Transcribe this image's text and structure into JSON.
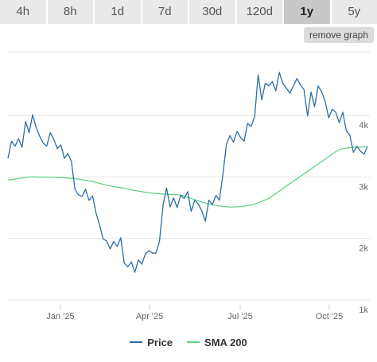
{
  "tabs": [
    "4h",
    "8h",
    "1d",
    "7d",
    "30d",
    "120d",
    "1y",
    "5y"
  ],
  "active_tab": "1y",
  "remove_graph_label": "remove graph",
  "colors": {
    "price": "#2c6da3",
    "sma": "#57d17f",
    "grid": "#e6e6e6",
    "axis_text": "#666666"
  },
  "chart_data": {
    "type": "line",
    "x_ticks": [
      "Jan '25",
      "Apr '25",
      "Jul '25",
      "Oct '25"
    ],
    "y_ticks": [
      "1k",
      "2k",
      "3k",
      "4k"
    ],
    "y_tick_values": [
      1000,
      2000,
      3000,
      4000
    ],
    "ylim": [
      1000,
      4000
    ],
    "series": [
      {
        "name": "Price",
        "color": "#2c6da3",
        "values": [
          3300,
          3580,
          3500,
          3620,
          3480,
          3900,
          3720,
          4010,
          3800,
          3660,
          3550,
          3500,
          3720,
          3610,
          3460,
          3520,
          3300,
          3380,
          3250,
          2800,
          2710,
          2680,
          2800,
          2620,
          2690,
          2410,
          2220,
          1990,
          1960,
          1830,
          1950,
          1870,
          2010,
          1600,
          1540,
          1620,
          1450,
          1650,
          1580,
          1750,
          1800,
          1760,
          1760,
          1950,
          2540,
          2820,
          2510,
          2660,
          2500,
          2700,
          2650,
          2760,
          2440,
          2620,
          2560,
          2450,
          2280,
          2620,
          2550,
          2700,
          2620,
          3050,
          3530,
          3670,
          3560,
          3740,
          3640,
          3580,
          3870,
          3820,
          3980,
          4660,
          4250,
          4520,
          4480,
          4550,
          4400,
          4700,
          4520,
          4440,
          4360,
          4480,
          4600,
          4490,
          4420,
          3990,
          4380,
          4140,
          4480,
          4380,
          4230,
          3960,
          4100,
          4050,
          3880,
          4050,
          3750,
          3680,
          3400,
          3500,
          3420,
          3370,
          3490
        ]
      },
      {
        "name": "SMA 200",
        "color": "#57d17f",
        "values": [
          2950,
          2958,
          2966,
          2974,
          2982,
          2990,
          2998,
          3000,
          2998,
          2997,
          2996,
          2995,
          2994,
          2993,
          2992,
          2990,
          2985,
          2980,
          2975,
          2970,
          2965,
          2955,
          2945,
          2935,
          2925,
          2910,
          2895,
          2880,
          2865,
          2852,
          2843,
          2835,
          2825,
          2815,
          2800,
          2790,
          2780,
          2770,
          2760,
          2750,
          2740,
          2735,
          2730,
          2725,
          2720,
          2718,
          2715,
          2712,
          2709,
          2705,
          2690,
          2670,
          2650,
          2630,
          2610,
          2590,
          2575,
          2560,
          2547,
          2535,
          2528,
          2521,
          2514,
          2510,
          2512,
          2514,
          2516,
          2525,
          2535,
          2545,
          2560,
          2580,
          2600,
          2625,
          2650,
          2690,
          2730,
          2770,
          2810,
          2850,
          2890,
          2930,
          2970,
          3010,
          3050,
          3090,
          3130,
          3170,
          3210,
          3250,
          3290,
          3330,
          3370,
          3410,
          3440,
          3460,
          3470,
          3475,
          3480,
          3482,
          3485,
          3488,
          3490
        ]
      }
    ],
    "legend_position": "bottom-center"
  }
}
